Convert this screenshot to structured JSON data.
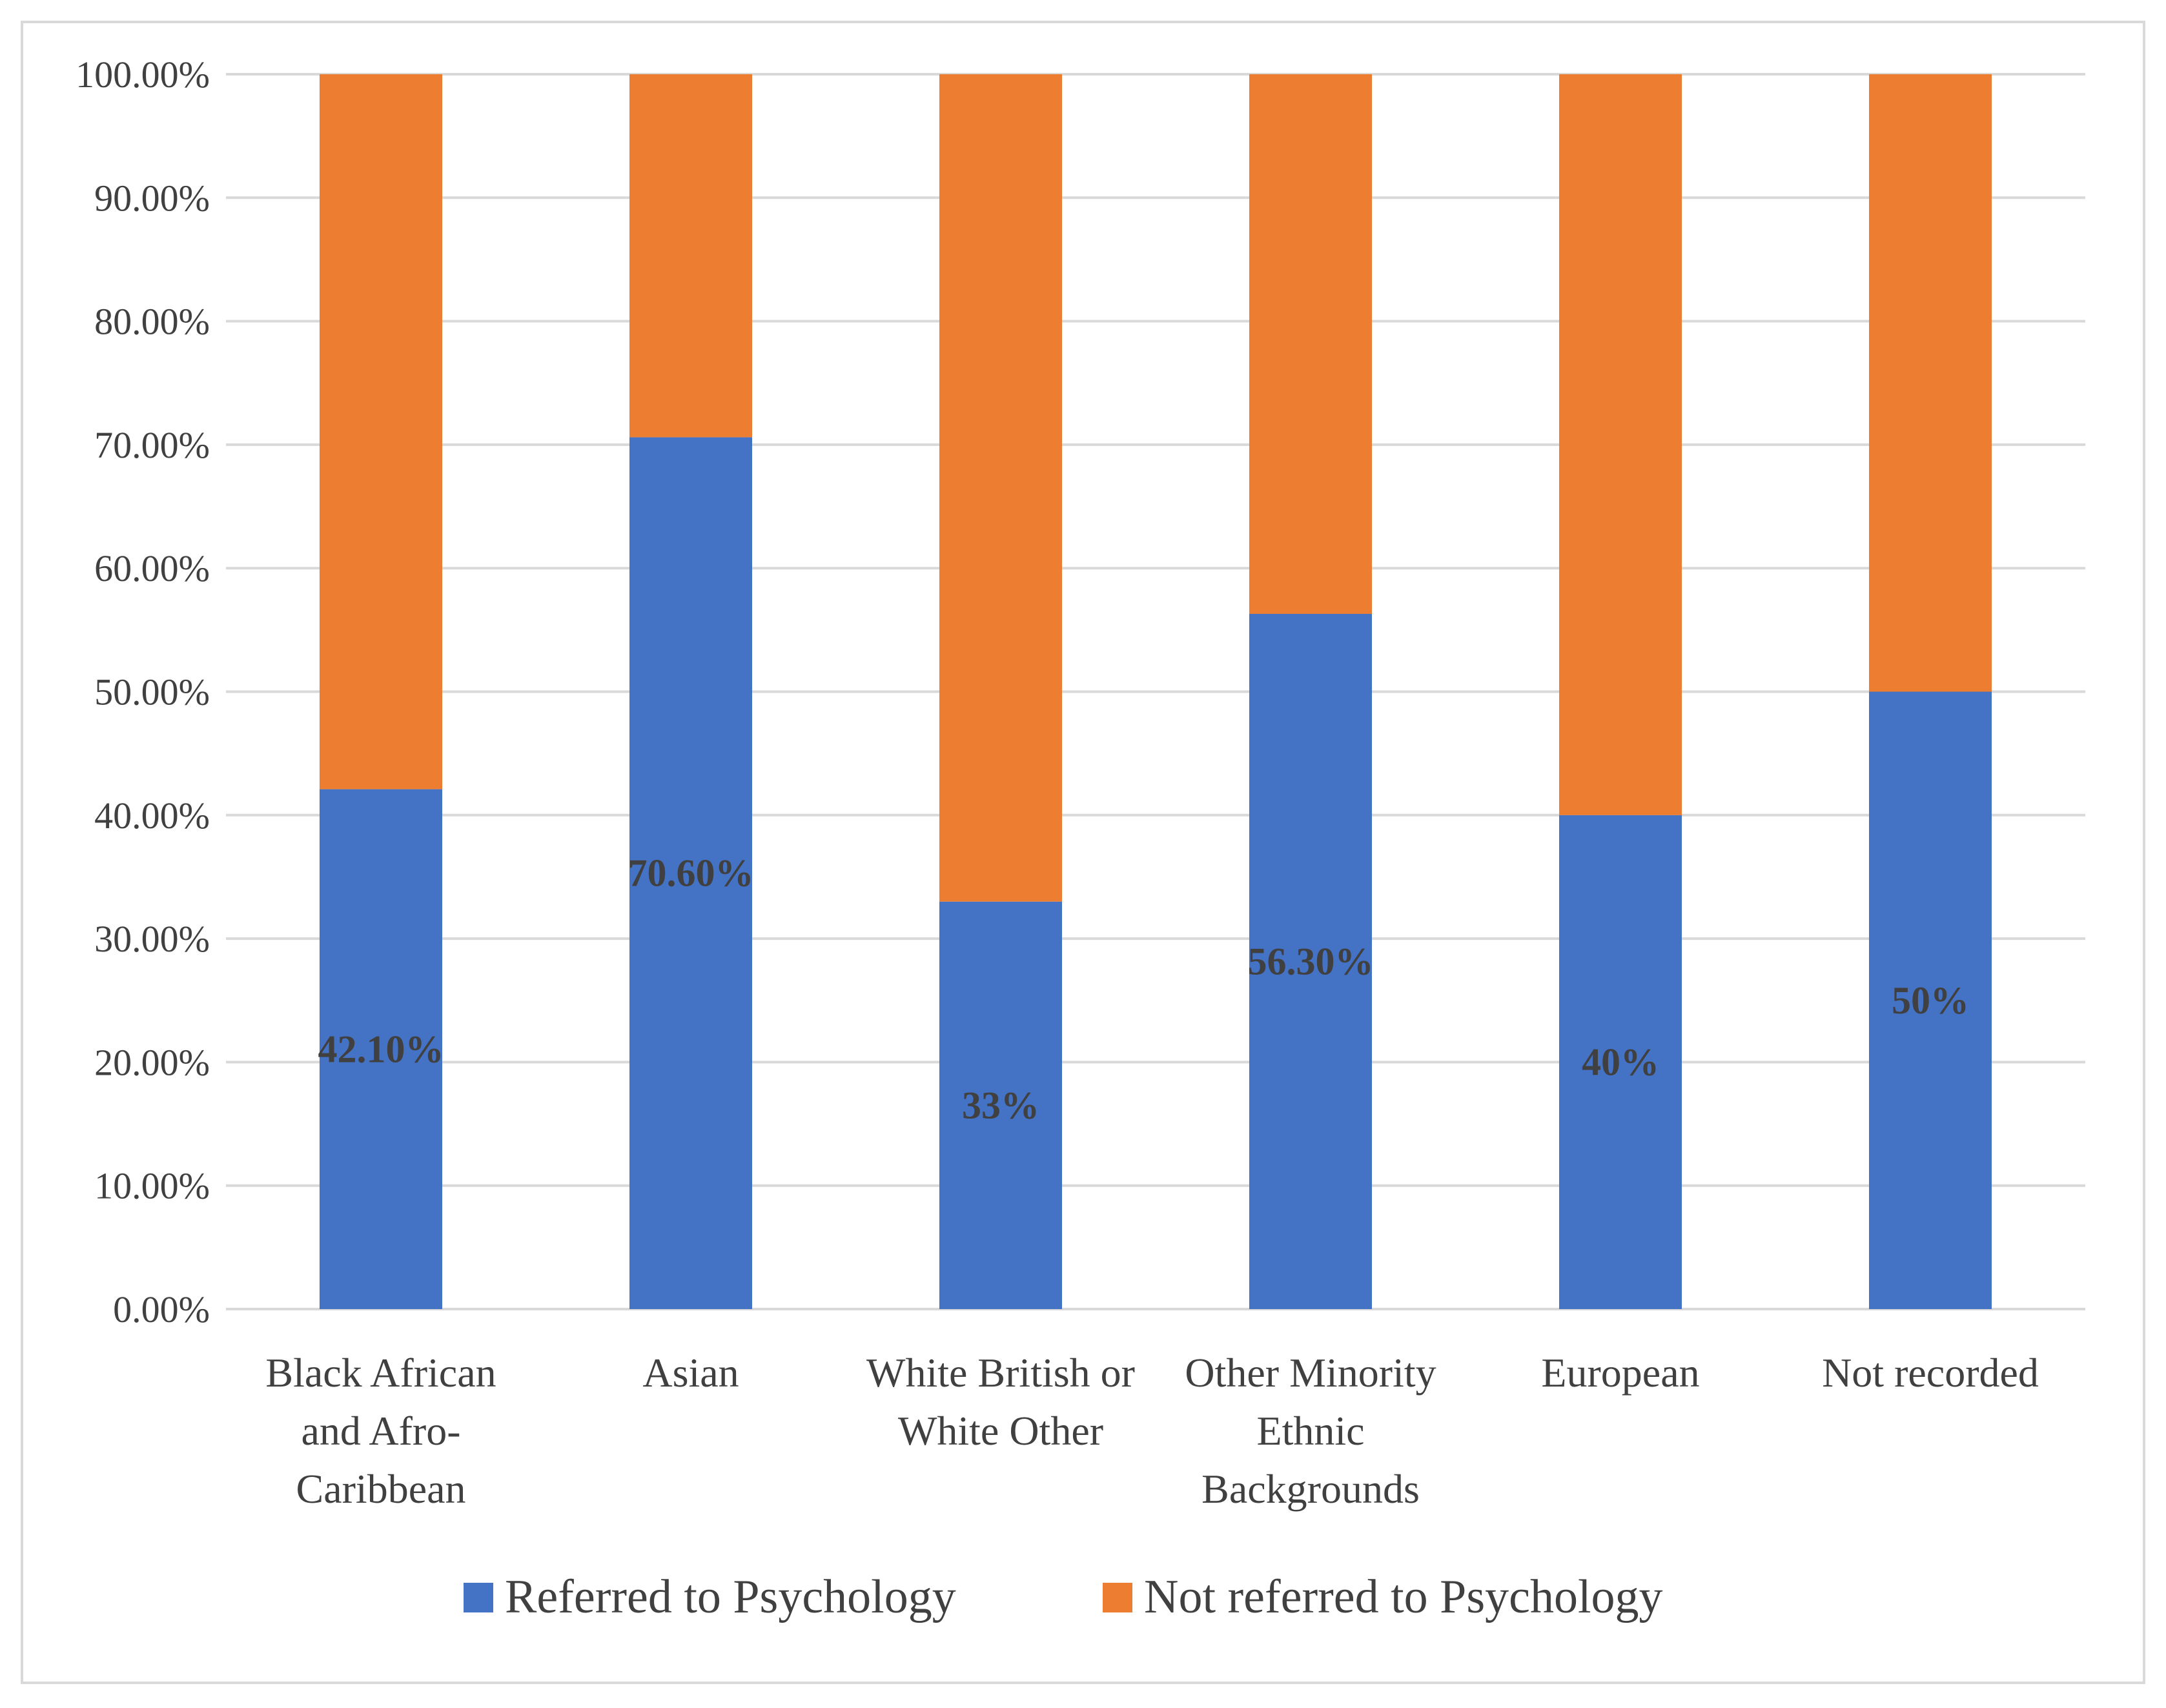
{
  "chart_data": {
    "type": "bar",
    "stacked": true,
    "title": "",
    "xlabel": "",
    "ylabel": "",
    "ylim": [
      0,
      100
    ],
    "y_ticks": [
      "0.00%",
      "10.00%",
      "20.00%",
      "30.00%",
      "40.00%",
      "50.00%",
      "60.00%",
      "70.00%",
      "80.00%",
      "90.00%",
      "100.00%"
    ],
    "grid": true,
    "legend_position": "bottom",
    "categories": [
      [
        "Black African",
        "and Afro-",
        "Caribbean"
      ],
      [
        "Asian"
      ],
      [
        "White British or",
        "White Other"
      ],
      [
        "Other Minority",
        "Ethnic",
        "Backgrounds"
      ],
      [
        "European"
      ],
      [
        "Not recorded"
      ]
    ],
    "series": [
      {
        "name": "Referred to Psychology",
        "color": "#4472C4",
        "values": [
          42.1,
          70.6,
          33,
          56.3,
          40,
          50
        ],
        "data_labels": [
          "42.10%",
          "70.60%",
          "33%",
          "56.30%",
          "40%",
          "50%"
        ]
      },
      {
        "name": "Not referred to Psychology",
        "color": "#ED7D31",
        "values": [
          57.9,
          29.4,
          67,
          43.7,
          60,
          50
        ]
      }
    ]
  }
}
